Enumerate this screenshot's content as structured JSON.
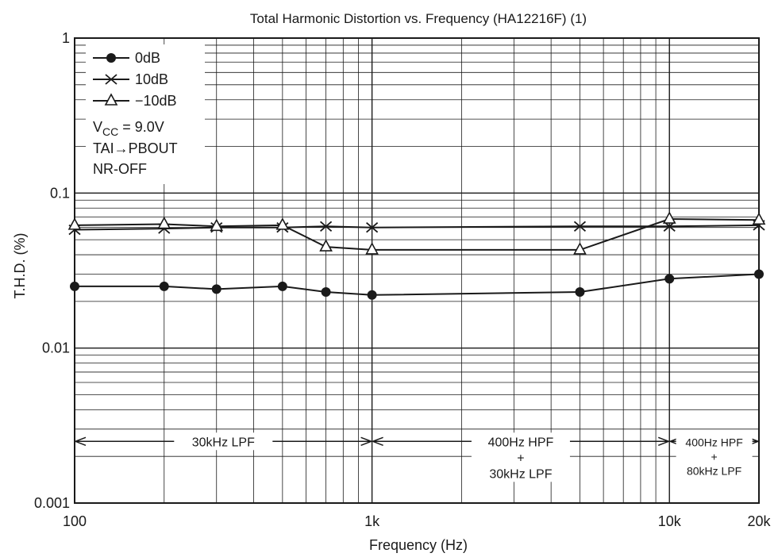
{
  "chart_data": {
    "type": "line",
    "title": "Total Harmonic Distortion vs. Frequency (HA12216F) (1)",
    "xlabel": "Frequency  (Hz)",
    "ylabel": "T.H.D.  (%)",
    "xscale": "log",
    "yscale": "log",
    "xlim": [
      100,
      20000
    ],
    "ylim": [
      0.001,
      1
    ],
    "x_ticks": [
      {
        "value": 100,
        "label": "100"
      },
      {
        "value": 1000,
        "label": "1k"
      },
      {
        "value": 10000,
        "label": "10k"
      },
      {
        "value": 20000,
        "label": "20k"
      }
    ],
    "y_ticks": [
      {
        "value": 1,
        "label": "1"
      },
      {
        "value": 0.1,
        "label": "0.1"
      },
      {
        "value": 0.01,
        "label": "0.01"
      },
      {
        "value": 0.001,
        "label": "0.001"
      }
    ],
    "grid": true,
    "legend_position": "top-left",
    "series": [
      {
        "name": "0dB",
        "marker": "filled-circle",
        "x": [
          100,
          200,
          300,
          500,
          700,
          1000,
          5000,
          10000,
          20000
        ],
        "y": [
          0.025,
          0.025,
          0.024,
          0.025,
          0.023,
          0.022,
          0.023,
          0.028,
          0.03
        ]
      },
      {
        "name": "10dB",
        "marker": "cross",
        "x": [
          100,
          200,
          300,
          500,
          700,
          1000,
          5000,
          10000,
          20000
        ],
        "y": [
          0.058,
          0.059,
          0.06,
          0.06,
          0.061,
          0.06,
          0.061,
          0.061,
          0.062
        ]
      },
      {
        "name": "−10dB",
        "marker": "open-triangle",
        "x": [
          100,
          200,
          300,
          500,
          700,
          1000,
          5000,
          10000,
          20000
        ],
        "y": [
          0.062,
          0.063,
          0.061,
          0.062,
          0.045,
          0.043,
          0.043,
          0.068,
          0.067
        ]
      }
    ],
    "conditions": {
      "vcc_prefix": "V",
      "vcc_sub": "CC",
      "vcc_value": " = 9.0V",
      "path": "TAI→PBOUT",
      "nr": "NR-OFF"
    },
    "filter_bands": [
      {
        "from": 100,
        "to": 1000,
        "y": 0.0025,
        "lines": [
          "30kHz LPF"
        ]
      },
      {
        "from": 1000,
        "to": 10000,
        "y": 0.0025,
        "lines": [
          "400Hz HPF",
          "+",
          "30kHz LPF"
        ]
      },
      {
        "from": 10000,
        "to": 20000,
        "y": 0.0025,
        "lines": [
          "400Hz HPF",
          "+",
          "80kHz LPF"
        ]
      }
    ]
  }
}
